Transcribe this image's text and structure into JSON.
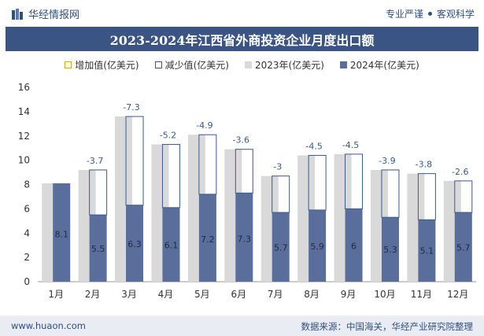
{
  "header": {
    "brand": "华经情报网",
    "tagline_left": "专业严谨",
    "tagline_right": "客观科学"
  },
  "title": "2023-2024年江西省外商投资企业月度出口额",
  "footer": {
    "website": "www.huaon.com",
    "source": "数据来源：中国海关，华经产业研究院整理"
  },
  "colors": {
    "bar2023": "#d9d9d9",
    "bar2024": "#5a6e9c",
    "increase": "#e6a800",
    "decrease": "#3a5a8c",
    "title_bg": "#3a5584"
  },
  "chart_data": {
    "type": "bar",
    "title": "2023-2024年江西省外商投资企业月度出口额",
    "categories": [
      "1月",
      "2月",
      "3月",
      "4月",
      "5月",
      "6月",
      "7月",
      "8月",
      "9月",
      "10月",
      "11月",
      "12月"
    ],
    "series": [
      {
        "name": "2023年(亿美元)",
        "values": [
          8.1,
          9.2,
          13.6,
          11.3,
          12.1,
          10.9,
          8.7,
          10.4,
          10.5,
          9.2,
          8.9,
          8.3
        ]
      },
      {
        "name": "2024年(亿美元)",
        "values": [
          8.1,
          5.5,
          6.3,
          6.1,
          7.2,
          7.3,
          5.7,
          5.9,
          6,
          5.3,
          5.1,
          5.7
        ]
      }
    ],
    "change_labels": [
      "",
      "-3.7",
      "-7.3",
      "-5.2",
      "-4.9",
      "-3.6",
      "-3",
      "-4.5",
      "-4.5",
      "-3.9",
      "-3.8",
      "-2.6"
    ],
    "legend": [
      "增加值(亿美元)",
      "减少值(亿美元)",
      "2023年(亿美元)",
      "2024年(亿美元)"
    ],
    "yticks": [
      "0",
      "2",
      "4",
      "6",
      "8",
      "10",
      "12",
      "14",
      "16"
    ],
    "ylim": [
      0,
      16
    ],
    "grid": false
  }
}
